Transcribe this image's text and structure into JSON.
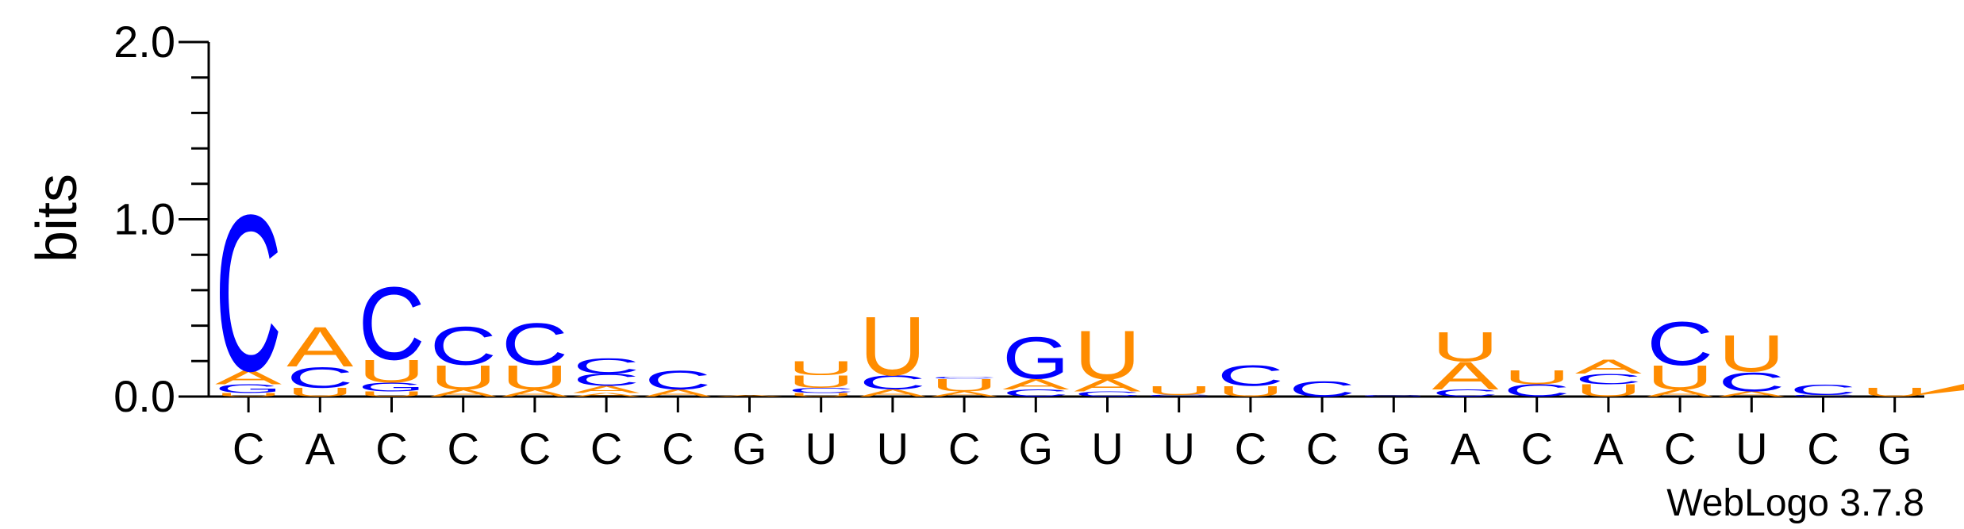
{
  "chart_data": {
    "type": "sequence-logo",
    "ylabel": "bits",
    "ylim": [
      0,
      2.0
    ],
    "yticks": [
      "0.0",
      "1.0",
      "2.0"
    ],
    "xlabels": [
      "C",
      "A",
      "C",
      "C",
      "C",
      "C",
      "C",
      "G",
      "U",
      "U",
      "C",
      "G",
      "U",
      "U",
      "C",
      "C",
      "G",
      "A",
      "C",
      "A",
      "C",
      "U",
      "C",
      "G"
    ],
    "colors": {
      "A": "#ff8c00",
      "U": "#ff8c00",
      "C": "#0000ff",
      "G": "#0000ff"
    },
    "positions": [
      [
        [
          "U",
          0.02
        ],
        [
          "G",
          0.05
        ],
        [
          "A",
          0.08
        ],
        [
          "C",
          0.9
        ]
      ],
      [
        [
          "U",
          0.05
        ],
        [
          "C",
          0.12
        ],
        [
          "A",
          0.23
        ]
      ],
      [
        [
          "U",
          0.03
        ],
        [
          "G",
          0.05
        ],
        [
          "U",
          0.13
        ],
        [
          "C",
          0.42
        ]
      ],
      [
        [
          "A",
          0.04
        ],
        [
          "U",
          0.14
        ],
        [
          "C",
          0.22
        ]
      ],
      [
        [
          "A",
          0.04
        ],
        [
          "U",
          0.14
        ],
        [
          "C",
          0.24
        ]
      ],
      [
        [
          "A",
          0.02
        ],
        [
          "A",
          0.04
        ],
        [
          "C",
          0.07
        ],
        [
          "C",
          0.09
        ]
      ],
      [
        [
          "A",
          0.04
        ],
        [
          "C",
          0.11
        ]
      ],
      [
        [
          "A",
          0.01
        ]
      ],
      [
        [
          "U",
          0.02
        ],
        [
          "C",
          0.03
        ],
        [
          "U",
          0.07
        ],
        [
          "U",
          0.08
        ]
      ],
      [
        [
          "A",
          0.04
        ],
        [
          "C",
          0.08
        ],
        [
          "U",
          0.34
        ]
      ],
      [
        [
          "A",
          0.03
        ],
        [
          "U",
          0.07
        ],
        [
          "C",
          0.01
        ]
      ],
      [
        [
          "C",
          0.04
        ],
        [
          "A",
          0.06
        ],
        [
          "G",
          0.24
        ]
      ],
      [
        [
          "C",
          0.03
        ],
        [
          "A",
          0.07
        ],
        [
          "U",
          0.28
        ]
      ],
      [
        [
          "C",
          0.01
        ],
        [
          "U",
          0.05
        ]
      ],
      [
        [
          "U",
          0.06
        ],
        [
          "C",
          0.12
        ]
      ],
      [
        [
          "C",
          0.09
        ]
      ],
      [
        [
          "G",
          0.01
        ]
      ],
      [
        [
          "C",
          0.04
        ],
        [
          "A",
          0.16
        ],
        [
          "U",
          0.17
        ]
      ],
      [
        [
          "C",
          0.07
        ],
        [
          "U",
          0.08
        ]
      ],
      [
        [
          "U",
          0.07
        ],
        [
          "C",
          0.06
        ],
        [
          "A",
          0.08
        ]
      ],
      [
        [
          "A",
          0.04
        ],
        [
          "U",
          0.14
        ],
        [
          "C",
          0.25
        ]
      ],
      [
        [
          "A",
          0.03
        ],
        [
          "C",
          0.11
        ],
        [
          "U",
          0.21
        ]
      ],
      [
        [
          "C",
          0.01
        ],
        [
          "C",
          0.06
        ]
      ],
      [
        [
          "U",
          0.05
        ]
      ]
    ]
  },
  "credit": "WebLogo 3.7.8"
}
